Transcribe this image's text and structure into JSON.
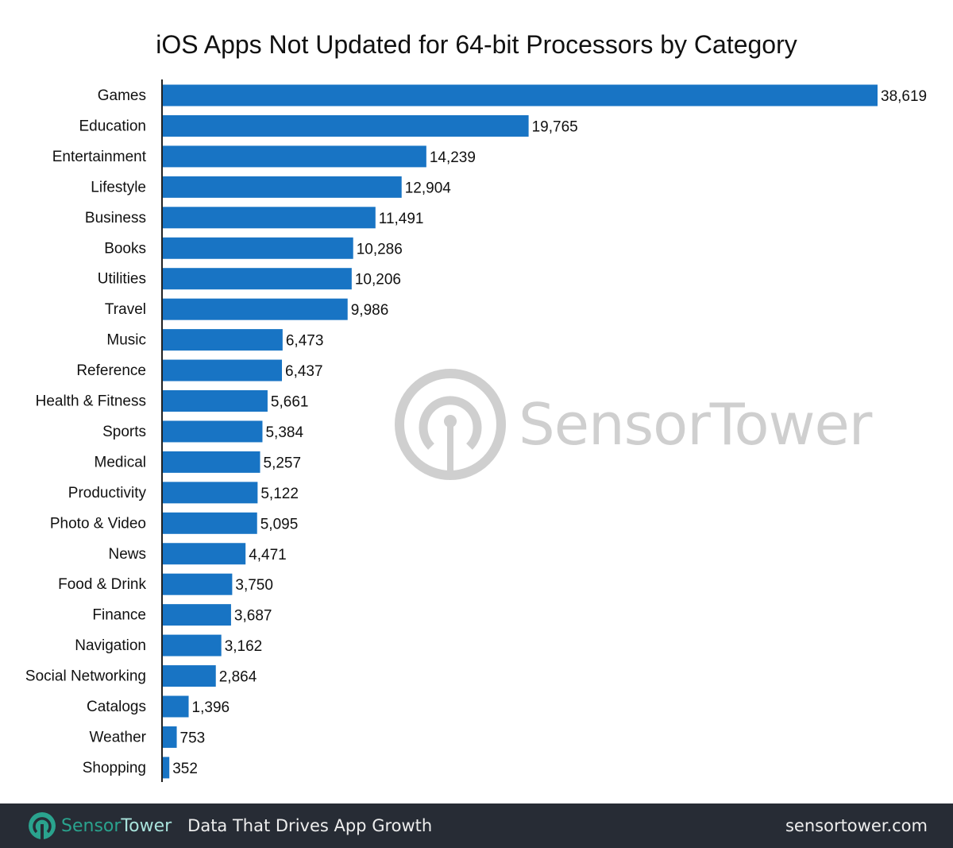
{
  "chart_data": {
    "type": "bar",
    "orientation": "horizontal",
    "title": "iOS Apps Not Updated for 64-bit Processors by Category",
    "categories": [
      "Games",
      "Education",
      "Entertainment",
      "Lifestyle",
      "Business",
      "Books",
      "Utilities",
      "Travel",
      "Music",
      "Reference",
      "Health & Fitness",
      "Sports",
      "Medical",
      "Productivity",
      "Photo & Video",
      "News",
      "Food & Drink",
      "Finance",
      "Navigation",
      "Social Networking",
      "Catalogs",
      "Weather",
      "Shopping"
    ],
    "values": [
      38619,
      19765,
      14239,
      12904,
      11491,
      10286,
      10206,
      9986,
      6473,
      6437,
      5661,
      5384,
      5257,
      5122,
      5095,
      4471,
      3750,
      3687,
      3162,
      2864,
      1396,
      753,
      352
    ],
    "data_labels": [
      "38,619",
      "19,765",
      "14,239",
      "12,904",
      "11,491",
      "10,286",
      "10,206",
      "9,986",
      "6,473",
      "6,437",
      "5,661",
      "5,384",
      "5,257",
      "5,122",
      "5,095",
      "4,471",
      "3,750",
      "3,687",
      "3,162",
      "2,864",
      "1,396",
      "753",
      "352"
    ],
    "xlabel": "",
    "ylabel": "",
    "xlim": [
      0,
      38619
    ],
    "grid": false,
    "bar_color": "#1874c4"
  },
  "watermark": {
    "text": "SensorTower"
  },
  "footer": {
    "brand_sensor": "Sensor",
    "brand_tower": "Tower",
    "tagline": "Data That Drives App Growth",
    "site": "sensortower.com",
    "background": "#272c35",
    "brand_color": "#2aa38e"
  }
}
